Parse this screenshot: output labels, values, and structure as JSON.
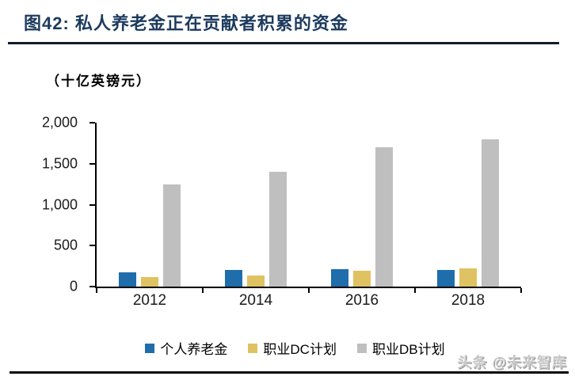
{
  "header": {
    "title": "图42:  私人养老金正在贡献者积累的资金"
  },
  "chart_data": {
    "type": "bar",
    "title": "私人养老金正在贡献者积累的资金",
    "unit_label": "（十亿英镑元）",
    "categories": [
      "2012",
      "2014",
      "2016",
      "2018"
    ],
    "series": [
      {
        "name": "个人养老金",
        "color": "#1F6DAB",
        "values": [
          170,
          205,
          210,
          200
        ]
      },
      {
        "name": "职业DC计划",
        "color": "#DFC262",
        "values": [
          120,
          140,
          190,
          220
        ]
      },
      {
        "name": "职业DB计划",
        "color": "#BFBFBF",
        "values": [
          1250,
          1400,
          1700,
          1800
        ]
      }
    ],
    "ylabel": "",
    "xlabel": "",
    "ylim": [
      0,
      2000
    ],
    "y_ticks": [
      "0",
      "500",
      "1,000",
      "1,500",
      "2,000"
    ],
    "grid": false,
    "legend_position": "bottom"
  },
  "footer": {
    "watermark": "头条 @未来智库"
  },
  "colors": {
    "title": "#1C3A5E",
    "axis": "#000000",
    "title_rule": "#131B2C",
    "bottom_rule": "#060606"
  }
}
